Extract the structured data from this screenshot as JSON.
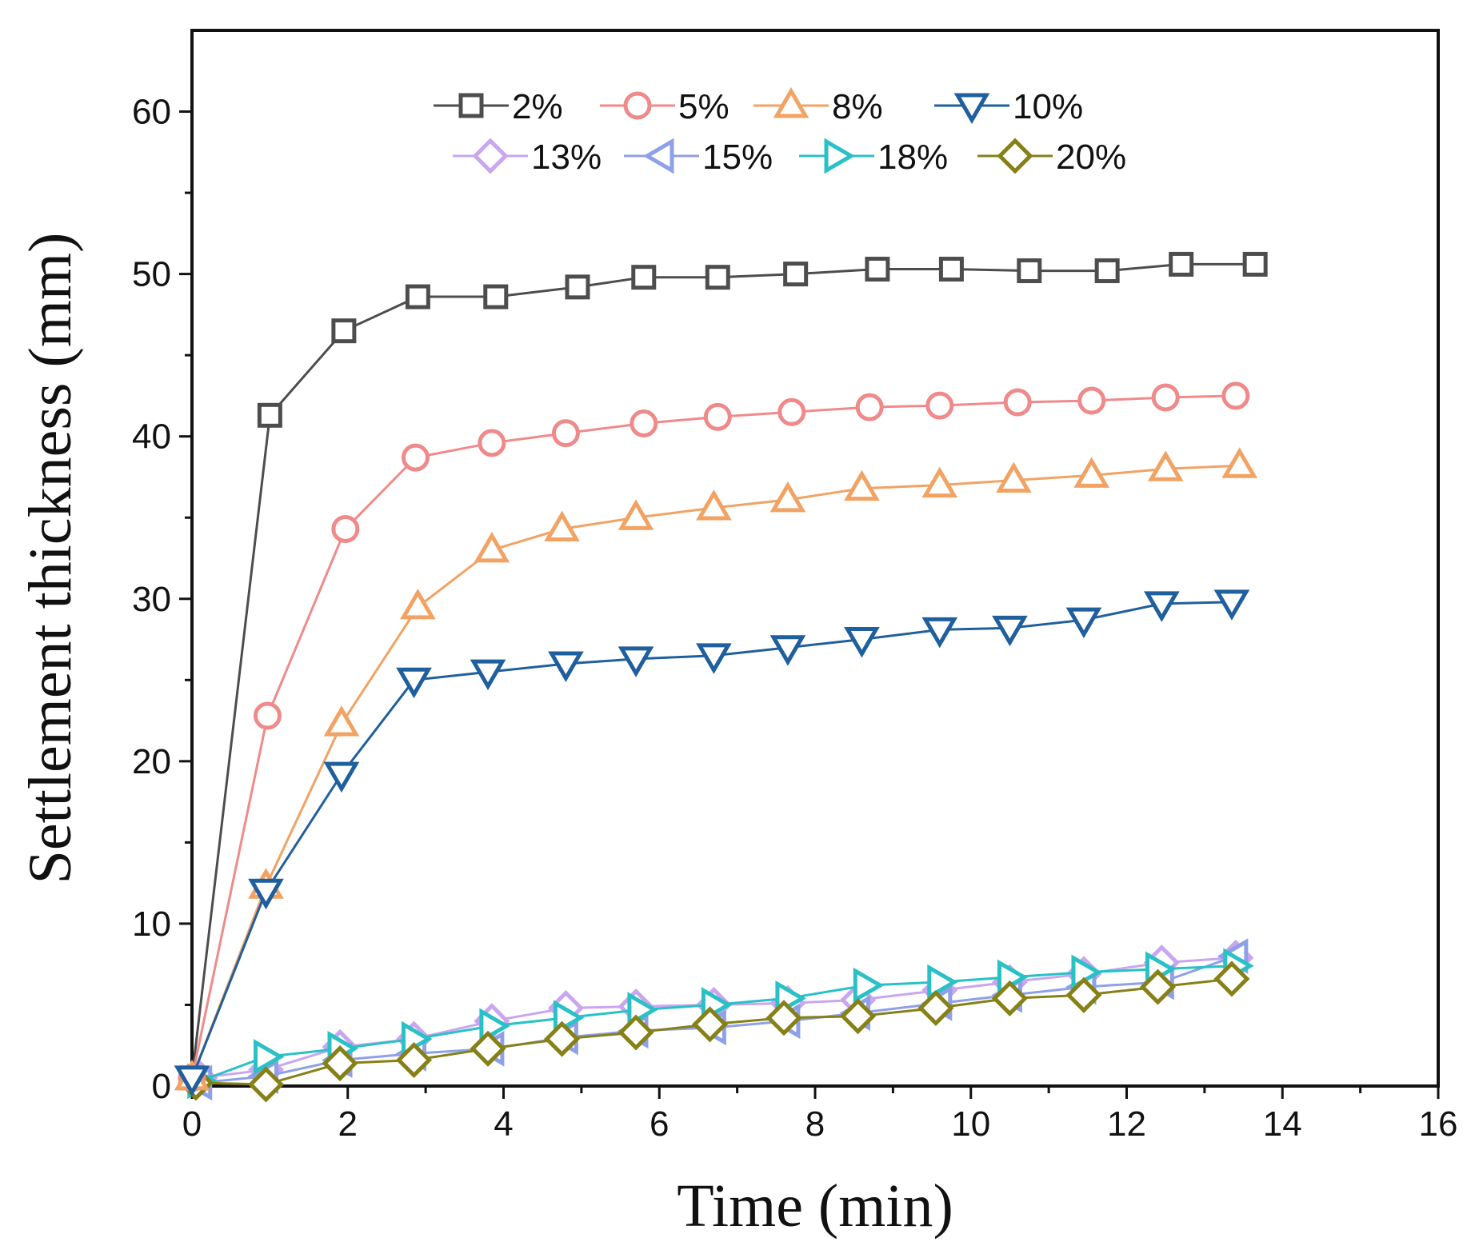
{
  "chart_data": {
    "type": "line",
    "title": "",
    "xlabel": "Time (min)",
    "ylabel": "Settlement thickness (mm)",
    "xlim": [
      0,
      16
    ],
    "ylim": [
      0,
      65
    ],
    "xticks": [
      0,
      2,
      4,
      6,
      8,
      10,
      12,
      14,
      16
    ],
    "yticks": [
      0,
      10,
      20,
      30,
      40,
      50,
      60
    ],
    "grid": false,
    "legend_position": "top",
    "series": [
      {
        "name": "2%",
        "color": "#4d4d4d",
        "marker": "square",
        "x": [
          0,
          1.0,
          1.95,
          2.9,
          3.9,
          4.95,
          5.8,
          6.75,
          7.75,
          8.8,
          9.75,
          10.75,
          11.75,
          12.7,
          13.65
        ],
        "y": [
          0.5,
          41.3,
          46.5,
          48.6,
          48.6,
          49.2,
          49.8,
          49.8,
          50.0,
          50.3,
          50.3,
          50.2,
          50.2,
          50.6,
          50.6
        ]
      },
      {
        "name": "5%",
        "color": "#f08a8a",
        "marker": "circle",
        "x": [
          0,
          0.97,
          1.97,
          2.87,
          3.85,
          4.8,
          5.8,
          6.75,
          7.7,
          8.7,
          9.6,
          10.6,
          11.55,
          12.5,
          13.4
        ],
        "y": [
          0.5,
          22.8,
          34.3,
          38.7,
          39.6,
          40.2,
          40.8,
          41.2,
          41.5,
          41.8,
          41.9,
          42.1,
          42.2,
          42.4,
          42.5
        ]
      },
      {
        "name": "8%",
        "color": "#f2a263",
        "marker": "triangle-up",
        "x": [
          0,
          0.95,
          1.92,
          2.9,
          3.85,
          4.75,
          5.7,
          6.7,
          7.65,
          8.6,
          9.6,
          10.55,
          11.55,
          12.5,
          13.45
        ],
        "y": [
          0.5,
          12.3,
          22.3,
          29.5,
          33.0,
          34.3,
          35.0,
          35.6,
          36.1,
          36.8,
          37.0,
          37.3,
          37.6,
          38.0,
          38.2
        ]
      },
      {
        "name": "10%",
        "color": "#1f5f9e",
        "marker": "triangle-down",
        "x": [
          0,
          0.95,
          1.92,
          2.85,
          3.8,
          4.8,
          5.7,
          6.7,
          7.65,
          8.6,
          9.6,
          10.5,
          11.45,
          12.45,
          13.35
        ],
        "y": [
          0.5,
          12.0,
          19.2,
          25.0,
          25.5,
          26.0,
          26.3,
          26.5,
          27.0,
          27.5,
          28.1,
          28.2,
          28.7,
          29.7,
          29.8
        ]
      },
      {
        "name": "13%",
        "color": "#c9a6ef",
        "marker": "diamond",
        "x": [
          0.1,
          0.95,
          1.9,
          2.85,
          3.85,
          4.8,
          5.7,
          6.7,
          7.65,
          8.55,
          9.6,
          10.5,
          11.45,
          12.45,
          13.4
        ],
        "y": [
          0.5,
          1.0,
          2.4,
          2.9,
          4.0,
          4.8,
          4.9,
          5.0,
          5.1,
          5.3,
          5.9,
          6.4,
          6.9,
          7.6,
          7.9
        ]
      },
      {
        "name": "15%",
        "color": "#8ea0e8",
        "marker": "triangle-left",
        "x": [
          0.1,
          0.95,
          1.9,
          2.85,
          3.85,
          4.8,
          5.7,
          6.7,
          7.65,
          8.55,
          9.6,
          10.5,
          11.45,
          12.45,
          13.4
        ],
        "y": [
          0.2,
          0.6,
          1.6,
          2.0,
          2.3,
          3.0,
          3.4,
          3.6,
          4.0,
          4.5,
          5.1,
          5.6,
          6.1,
          6.4,
          8.0
        ]
      },
      {
        "name": "18%",
        "color": "#29c1c6",
        "marker": "triangle-right",
        "x": [
          0.1,
          0.95,
          1.9,
          2.85,
          3.85,
          4.8,
          5.75,
          6.7,
          7.65,
          8.65,
          9.6,
          10.5,
          11.45,
          12.4,
          13.4
        ],
        "y": [
          0.3,
          1.8,
          2.3,
          2.9,
          3.7,
          4.2,
          4.7,
          5.0,
          5.4,
          6.2,
          6.4,
          6.7,
          7.0,
          7.2,
          7.4
        ]
      },
      {
        "name": "20%",
        "color": "#868017",
        "marker": "diamond",
        "x": [
          0.05,
          0.95,
          1.9,
          2.85,
          3.8,
          4.75,
          5.7,
          6.65,
          7.6,
          8.55,
          9.55,
          10.5,
          11.45,
          12.4,
          13.35
        ],
        "y": [
          0.2,
          0.1,
          1.4,
          1.6,
          2.3,
          2.9,
          3.3,
          3.8,
          4.2,
          4.3,
          4.8,
          5.4,
          5.6,
          6.1,
          6.6
        ]
      }
    ]
  }
}
